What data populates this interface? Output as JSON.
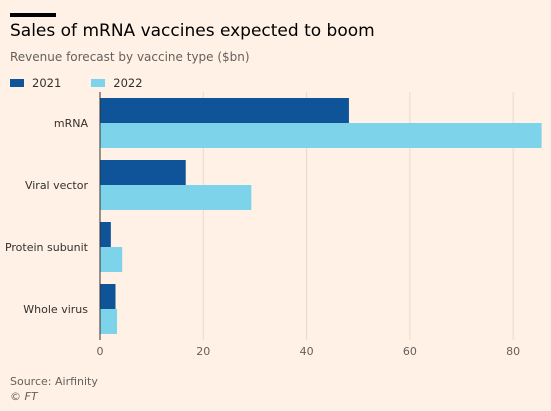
{
  "header": {
    "title": "Sales of mRNA vaccines expected to boom",
    "subtitle": "Revenue forecast by vaccine type ($bn)"
  },
  "footer": {
    "source": "Source: Airfinity",
    "credit": "© FT"
  },
  "chart_data": {
    "type": "bar",
    "orientation": "horizontal",
    "title": "Sales of mRNA vaccines expected to boom",
    "subtitle": "Revenue forecast by vaccine type ($bn)",
    "categories": [
      "mRNA",
      "Viral vector",
      "Protein subunit",
      "Whole virus"
    ],
    "series": [
      {
        "name": "2021",
        "color": "#0f5499",
        "values": [
          48.2,
          16.6,
          2.1,
          3.0
        ]
      },
      {
        "name": "2022",
        "color": "#7dd3ea",
        "values": [
          85.5,
          29.3,
          4.3,
          3.3
        ]
      }
    ],
    "xlim": [
      0,
      85
    ],
    "xticks": [
      0,
      20,
      40,
      60,
      80
    ],
    "grid": true,
    "legend_position": "top-left"
  }
}
